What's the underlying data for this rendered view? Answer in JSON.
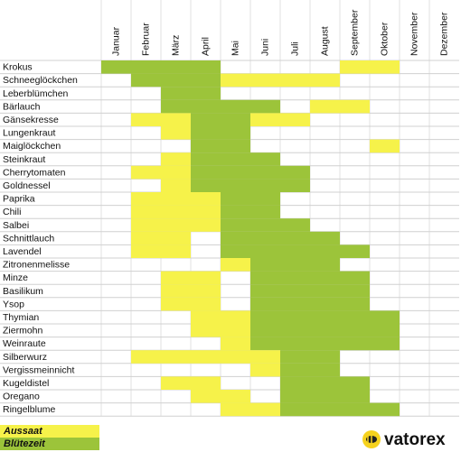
{
  "chart_data": {
    "type": "gantt",
    "categories": [
      "Januar",
      "Februar",
      "März",
      "April",
      "Mai",
      "Juni",
      "Juli",
      "August",
      "September",
      "Oktober",
      "November",
      "Dezember"
    ],
    "rows": [
      "Krokus",
      "Schneeglöckchen",
      "Leberblümchen",
      "Bärlauch",
      "Gänsekresse",
      "Lungenkraut",
      "Maiglöckchen",
      "Steinkraut",
      "Cherrytomaten",
      "Goldnessel",
      "Paprika",
      "Chili",
      "Salbei",
      "Schnittlauch",
      "Lavendel",
      "Zitronenmelisse",
      "Minze",
      "Basilikum",
      "Ysop",
      "Thymian",
      "Ziermohn",
      "Weinraute",
      "Silberwurz",
      "Vergissmeinnicht",
      "Kugeldistel",
      "Oregano",
      "Ringelblume"
    ],
    "series": [
      {
        "name": "Aussaat",
        "color": "#f6f24a",
        "values": [
          [
            [
              9,
              10
            ]
          ],
          [
            [
              5,
              8
            ]
          ],
          [],
          [
            [
              8,
              9
            ]
          ],
          [
            [
              2,
              3
            ],
            [
              6,
              7
            ]
          ],
          [
            [
              3,
              3
            ]
          ],
          [
            [
              10,
              10
            ]
          ],
          [
            [
              3,
              3
            ]
          ],
          [
            [
              2,
              3
            ]
          ],
          [
            [
              3,
              3
            ]
          ],
          [
            [
              2,
              4
            ]
          ],
          [
            [
              2,
              4
            ]
          ],
          [
            [
              2,
              4
            ]
          ],
          [
            [
              2,
              3
            ]
          ],
          [
            [
              2,
              3
            ]
          ],
          [
            [
              5,
              5
            ]
          ],
          [
            [
              3,
              4
            ]
          ],
          [
            [
              3,
              4
            ]
          ],
          [
            [
              3,
              4
            ]
          ],
          [
            [
              4,
              5
            ]
          ],
          [
            [
              4,
              5
            ]
          ],
          [
            [
              5,
              5
            ]
          ],
          [
            [
              2,
              6
            ]
          ],
          [
            [
              6,
              6
            ]
          ],
          [
            [
              3,
              4
            ]
          ],
          [
            [
              4,
              5
            ]
          ],
          [
            [
              5,
              6
            ]
          ]
        ]
      },
      {
        "name": "Blütezeit",
        "color": "#9cc43a",
        "values": [
          [
            [
              1,
              4
            ]
          ],
          [
            [
              2,
              4
            ]
          ],
          [
            [
              3,
              4
            ]
          ],
          [
            [
              3,
              6
            ]
          ],
          [
            [
              4,
              5
            ]
          ],
          [
            [
              4,
              5
            ]
          ],
          [
            [
              4,
              5
            ]
          ],
          [
            [
              4,
              6
            ]
          ],
          [
            [
              4,
              7
            ]
          ],
          [
            [
              4,
              7
            ]
          ],
          [
            [
              5,
              6
            ]
          ],
          [
            [
              5,
              6
            ]
          ],
          [
            [
              5,
              7
            ]
          ],
          [
            [
              5,
              8
            ]
          ],
          [
            [
              5,
              9
            ]
          ],
          [
            [
              6,
              8
            ]
          ],
          [
            [
              6,
              9
            ]
          ],
          [
            [
              6,
              9
            ]
          ],
          [
            [
              6,
              9
            ]
          ],
          [
            [
              6,
              10
            ]
          ],
          [
            [
              6,
              10
            ]
          ],
          [
            [
              6,
              10
            ]
          ],
          [
            [
              7,
              8
            ]
          ],
          [
            [
              7,
              8
            ]
          ],
          [
            [
              7,
              9
            ]
          ],
          [
            [
              7,
              9
            ]
          ],
          [
            [
              7,
              10
            ]
          ]
        ]
      }
    ],
    "brand": "vatorex"
  }
}
